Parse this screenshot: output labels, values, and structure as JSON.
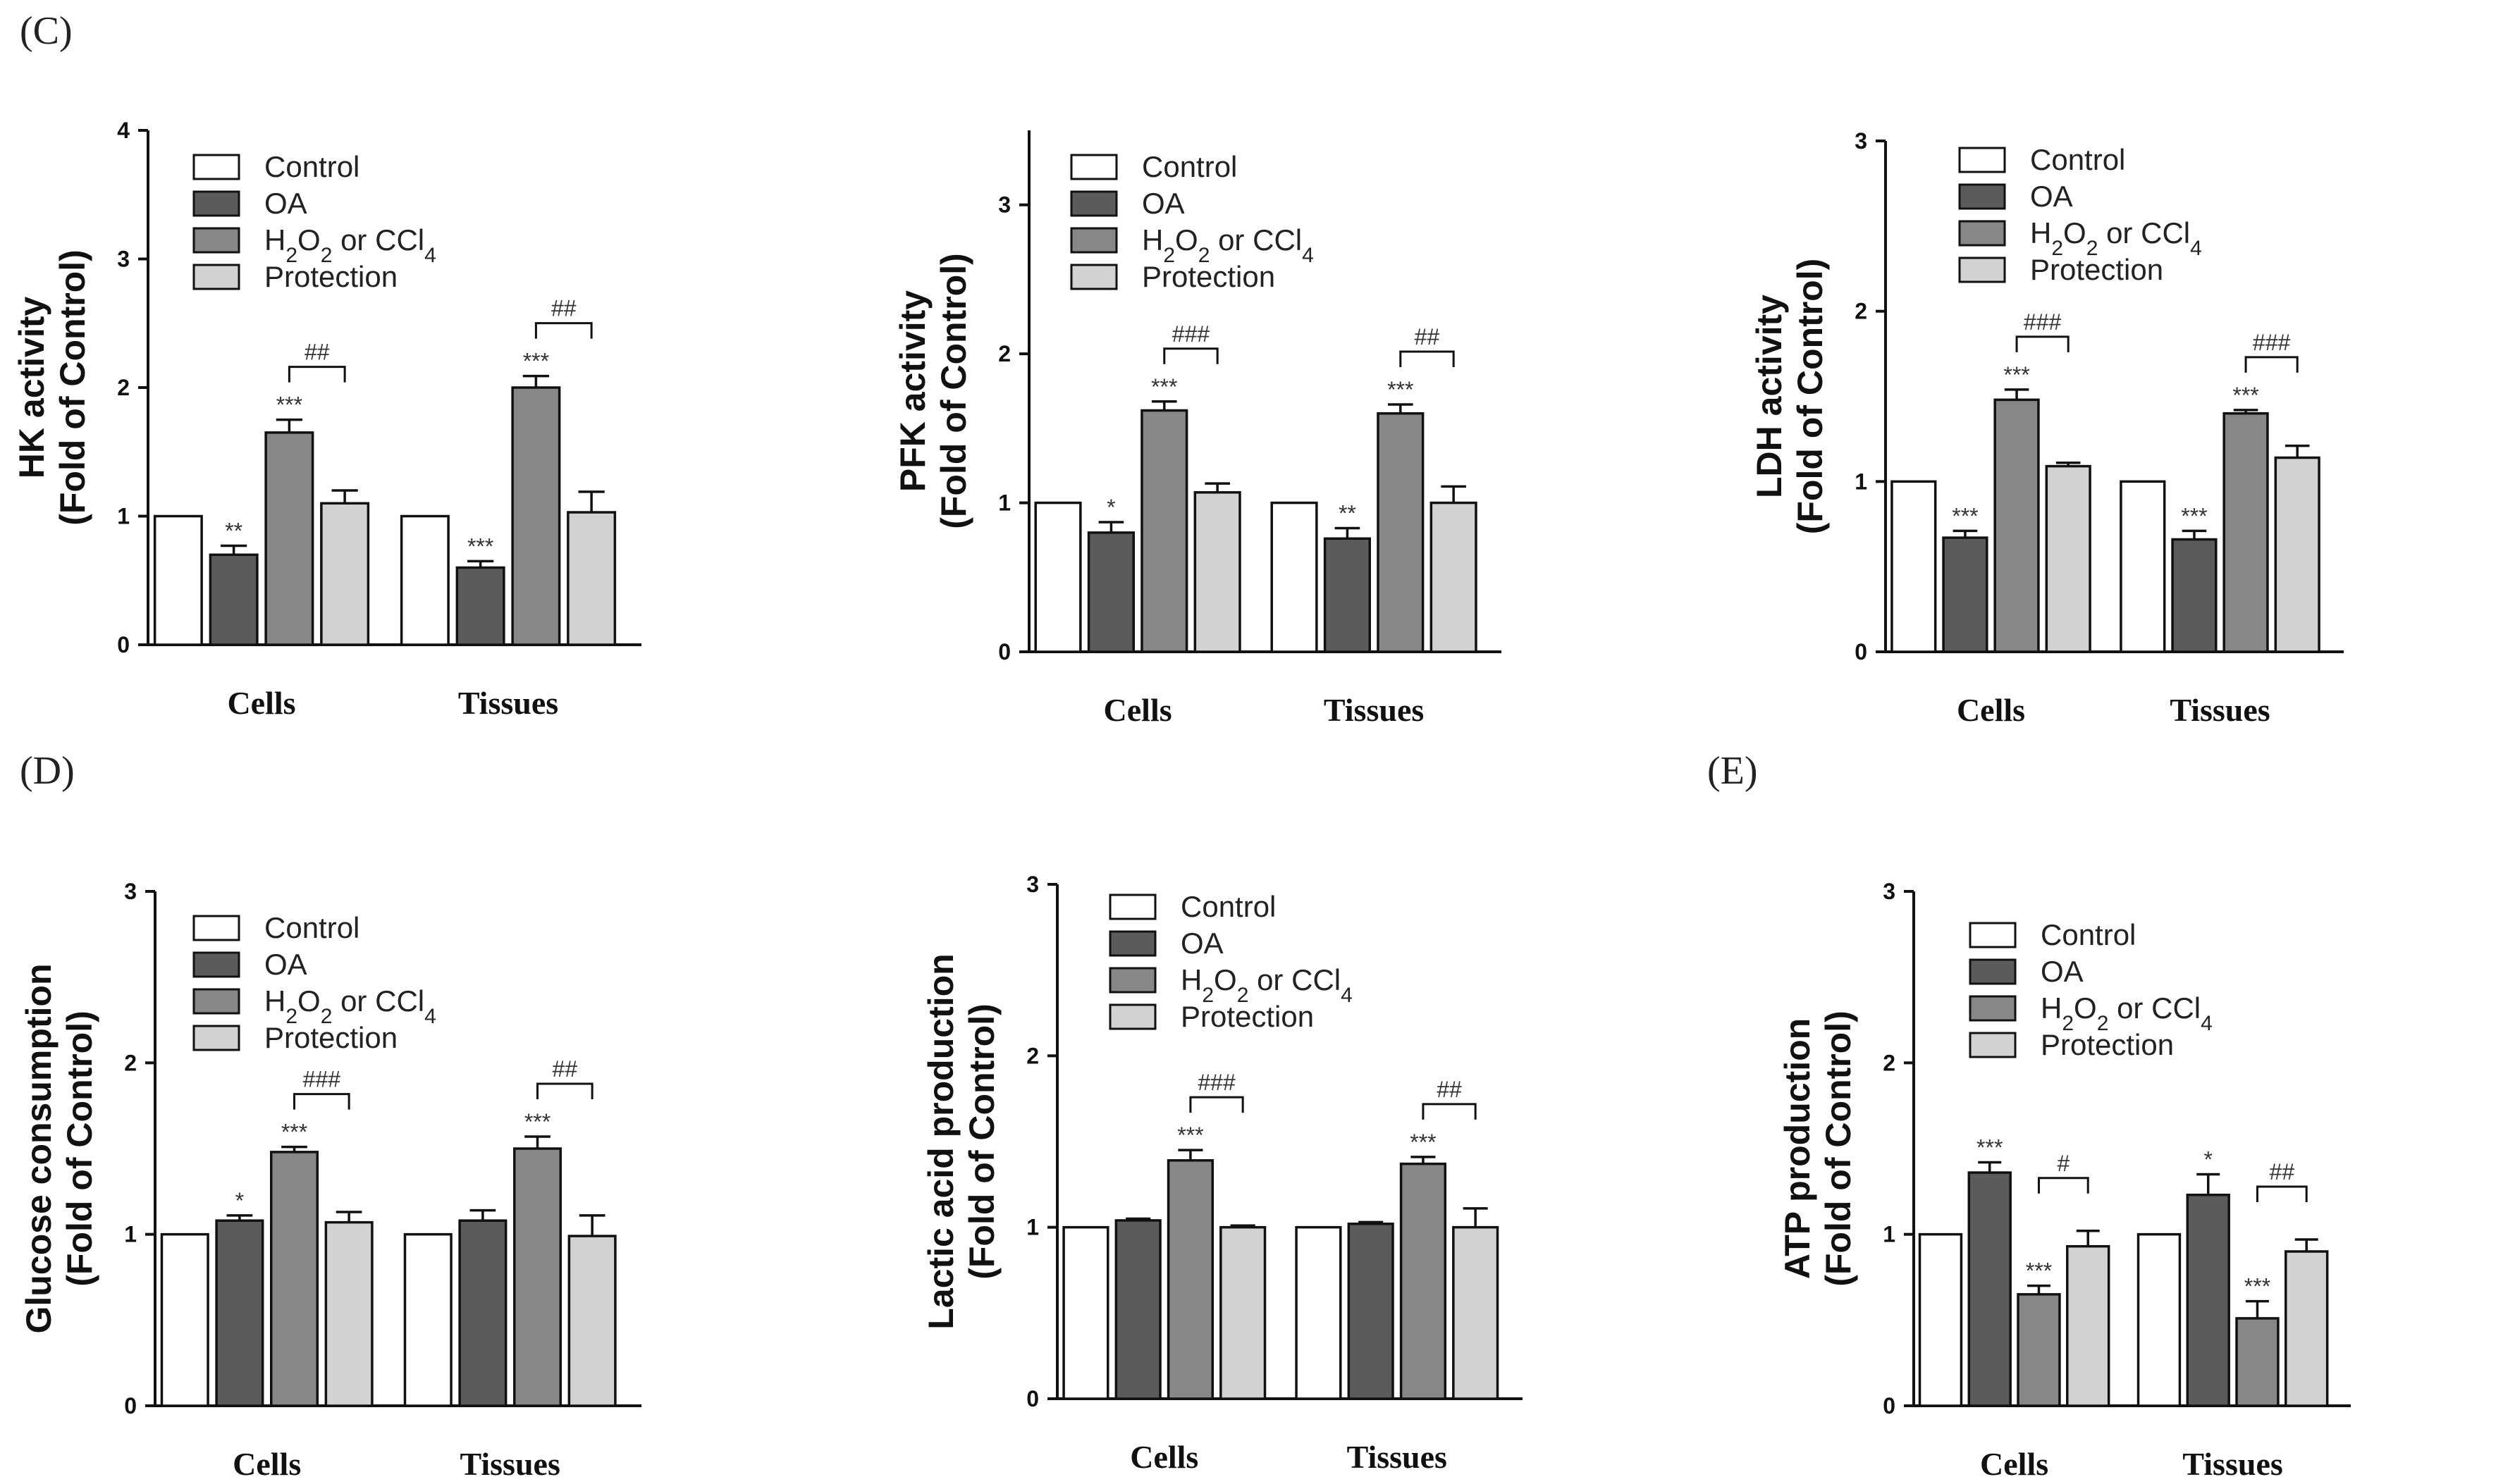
{
  "panel_labels": [
    "(C)",
    "(D)",
    "(E)"
  ],
  "legend_labels": {
    "control": "Control",
    "oa": "OA",
    "h2o2_or_ccl4": "H2O2 or CCl4",
    "protection": "Protection"
  },
  "colors": {
    "control": "#ffffff",
    "oa": "#5b5b5b",
    "h2o2_or_ccl4": "#878787",
    "protection": "#d2d2d2",
    "ink": "#111111"
  },
  "chart_data": [
    {
      "id": "hk",
      "type": "bar",
      "ylabel": [
        "HK activity",
        "(Fold of Control)"
      ],
      "categories": [
        "Cells",
        "Tissues"
      ],
      "ylim": [
        0,
        4
      ],
      "yticks": [
        0,
        1,
        2,
        3,
        4
      ],
      "series": [
        {
          "name": "Control",
          "values": [
            1.0,
            1.0
          ],
          "errors": [
            0,
            0
          ],
          "sig": [
            "",
            ""
          ]
        },
        {
          "name": "OA",
          "values": [
            0.7,
            0.6
          ],
          "errors": [
            0.07,
            0.05
          ],
          "sig": [
            "**",
            "***"
          ]
        },
        {
          "name": "H2O2 or CCl4",
          "values": [
            1.65,
            2.0
          ],
          "errors": [
            0.1,
            0.09
          ],
          "sig": [
            "***",
            "***"
          ]
        },
        {
          "name": "Protection",
          "values": [
            1.1,
            1.03
          ],
          "errors": [
            0.1,
            0.16
          ],
          "sig": [
            "",
            ""
          ]
        }
      ],
      "brackets": [
        "##",
        "##"
      ]
    },
    {
      "id": "pfk",
      "type": "bar",
      "ylabel": [
        "PFK activity",
        "(Fold of Control)"
      ],
      "categories": [
        "Cells",
        "Tissues"
      ],
      "ylim": [
        0,
        3.5
      ],
      "yticks": [
        0,
        1,
        2,
        3
      ],
      "series": [
        {
          "name": "Control",
          "values": [
            1.0,
            1.0
          ],
          "errors": [
            0,
            0
          ],
          "sig": [
            "",
            ""
          ]
        },
        {
          "name": "OA",
          "values": [
            0.8,
            0.76
          ],
          "errors": [
            0.07,
            0.07
          ],
          "sig": [
            "*",
            "**"
          ]
        },
        {
          "name": "H2O2 or CCl4",
          "values": [
            1.62,
            1.6
          ],
          "errors": [
            0.06,
            0.06
          ],
          "sig": [
            "***",
            "***"
          ]
        },
        {
          "name": "Protection",
          "values": [
            1.07,
            1.0
          ],
          "errors": [
            0.06,
            0.11
          ],
          "sig": [
            "",
            ""
          ]
        }
      ],
      "brackets": [
        "###",
        "##"
      ]
    },
    {
      "id": "ldh",
      "type": "bar",
      "ylabel": [
        "LDH activity",
        "(Fold of Control)"
      ],
      "categories": [
        "Cells",
        "Tissues"
      ],
      "ylim": [
        0,
        3
      ],
      "yticks": [
        0,
        1,
        2,
        3
      ],
      "series": [
        {
          "name": "Control",
          "values": [
            1.0,
            1.0
          ],
          "errors": [
            0,
            0
          ],
          "sig": [
            "",
            ""
          ]
        },
        {
          "name": "OA",
          "values": [
            0.67,
            0.66
          ],
          "errors": [
            0.04,
            0.05
          ],
          "sig": [
            "***",
            "***"
          ]
        },
        {
          "name": "H2O2 or CCl4",
          "values": [
            1.48,
            1.4
          ],
          "errors": [
            0.06,
            0.02
          ],
          "sig": [
            "***",
            "***"
          ]
        },
        {
          "name": "Protection",
          "values": [
            1.09,
            1.14
          ],
          "errors": [
            0.02,
            0.07
          ],
          "sig": [
            "",
            ""
          ]
        }
      ],
      "brackets": [
        "###",
        "###"
      ]
    },
    {
      "id": "glucose",
      "type": "bar",
      "ylabel": [
        "Glucose consumption",
        "(Fold of Control)"
      ],
      "categories": [
        "Cells",
        "Tissues"
      ],
      "ylim": [
        0,
        3
      ],
      "yticks": [
        0,
        1,
        2,
        3
      ],
      "series": [
        {
          "name": "Control",
          "values": [
            1.0,
            1.0
          ],
          "errors": [
            0,
            0
          ],
          "sig": [
            "",
            ""
          ]
        },
        {
          "name": "OA",
          "values": [
            1.08,
            1.08
          ],
          "errors": [
            0.03,
            0.06
          ],
          "sig": [
            "*",
            ""
          ]
        },
        {
          "name": "H2O2 or CCl4",
          "values": [
            1.48,
            1.5
          ],
          "errors": [
            0.03,
            0.07
          ],
          "sig": [
            "***",
            "***"
          ]
        },
        {
          "name": "Protection",
          "values": [
            1.07,
            0.99
          ],
          "errors": [
            0.06,
            0.12
          ],
          "sig": [
            "",
            ""
          ]
        }
      ],
      "brackets": [
        "###",
        "##"
      ]
    },
    {
      "id": "lactic",
      "type": "bar",
      "ylabel": [
        "Lactic acid production",
        "(Fold of Control)"
      ],
      "categories": [
        "Cells",
        "Tissues"
      ],
      "ylim": [
        0,
        3
      ],
      "yticks": [
        0,
        1,
        2,
        3
      ],
      "series": [
        {
          "name": "Control",
          "values": [
            1.0,
            1.0
          ],
          "errors": [
            0,
            0
          ],
          "sig": [
            "",
            ""
          ]
        },
        {
          "name": "OA",
          "values": [
            1.04,
            1.02
          ],
          "errors": [
            0.01,
            0.01
          ],
          "sig": [
            "",
            ""
          ]
        },
        {
          "name": "H2O2 or CCl4",
          "values": [
            1.39,
            1.37
          ],
          "errors": [
            0.06,
            0.04
          ],
          "sig": [
            "***",
            "***"
          ]
        },
        {
          "name": "Protection",
          "values": [
            1.0,
            1.0
          ],
          "errors": [
            0.01,
            0.11
          ],
          "sig": [
            "",
            ""
          ]
        }
      ],
      "brackets": [
        "###",
        "##"
      ]
    },
    {
      "id": "atp",
      "type": "bar",
      "ylabel": [
        "ATP production",
        "(Fold  of Control)"
      ],
      "categories": [
        "Cells",
        "Tissues"
      ],
      "ylim": [
        0,
        3
      ],
      "yticks": [
        0,
        1,
        2,
        3
      ],
      "series": [
        {
          "name": "Control",
          "values": [
            1.0,
            1.0
          ],
          "errors": [
            0,
            0
          ],
          "sig": [
            "",
            ""
          ]
        },
        {
          "name": "OA",
          "values": [
            1.36,
            1.23
          ],
          "errors": [
            0.06,
            0.12
          ],
          "sig": [
            "***",
            "*"
          ]
        },
        {
          "name": "H2O2 or CCl4",
          "values": [
            0.65,
            0.51
          ],
          "errors": [
            0.05,
            0.1
          ],
          "sig": [
            "***",
            "***"
          ]
        },
        {
          "name": "Protection",
          "values": [
            0.93,
            0.9
          ],
          "errors": [
            0.09,
            0.07
          ],
          "sig": [
            "",
            ""
          ]
        }
      ],
      "brackets": [
        "#",
        "##"
      ]
    }
  ]
}
